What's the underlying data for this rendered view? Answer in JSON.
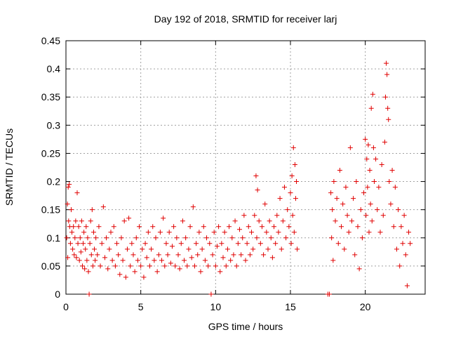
{
  "chart_data": {
    "type": "scatter",
    "title": "Day 192 of 2018, SRMTID for receiver larj",
    "xlabel": "GPS time / hours",
    "ylabel": "SRMTID / TECUs",
    "xlim": [
      0,
      24
    ],
    "ylim": [
      0,
      0.45
    ],
    "grid": true,
    "marker": "+",
    "color": "#e00000",
    "x_ticks": [
      {
        "value": 0,
        "label": "0"
      },
      {
        "value": 5,
        "label": "5"
      },
      {
        "value": 10,
        "label": "10"
      },
      {
        "value": 15,
        "label": "15"
      },
      {
        "value": 20,
        "label": "20"
      }
    ],
    "y_ticks": [
      {
        "value": 0,
        "label": "0"
      },
      {
        "value": 0.05,
        "label": "0.05"
      },
      {
        "value": 0.1,
        "label": "0.1"
      },
      {
        "value": 0.15,
        "label": "0.15"
      },
      {
        "value": 0.2,
        "label": "0.2"
      },
      {
        "value": 0.25,
        "label": "0.25"
      },
      {
        "value": 0.3,
        "label": "0.3"
      },
      {
        "value": 0.35,
        "label": "0.35"
      },
      {
        "value": 0.4,
        "label": "0.4"
      },
      {
        "value": 0.45,
        "label": "0.45"
      }
    ],
    "series": [
      {
        "name": "SRMTID",
        "points": [
          [
            0.05,
            0.1
          ],
          [
            0.1,
            0.16
          ],
          [
            0.12,
            0.065
          ],
          [
            0.15,
            0.19
          ],
          [
            0.18,
            0.13
          ],
          [
            0.22,
            0.195
          ],
          [
            0.25,
            0.12
          ],
          [
            0.3,
            0.09
          ],
          [
            0.35,
            0.15
          ],
          [
            0.4,
            0.11
          ],
          [
            0.45,
            0.08
          ],
          [
            0.5,
            0.12
          ],
          [
            0.55,
            0.07
          ],
          [
            0.6,
            0.1
          ],
          [
            0.65,
            0.13
          ],
          [
            0.7,
            0.065
          ],
          [
            0.75,
            0.18
          ],
          [
            0.8,
            0.09
          ],
          [
            0.85,
            0.12
          ],
          [
            0.9,
            0.06
          ],
          [
            0.95,
            0.1
          ],
          [
            1.0,
            0.075
          ],
          [
            1.05,
            0.13
          ],
          [
            1.1,
            0.05
          ],
          [
            1.15,
            0.09
          ],
          [
            1.2,
            0.11
          ],
          [
            1.25,
            0.045
          ],
          [
            1.3,
            0.08
          ],
          [
            1.35,
            0.12
          ],
          [
            1.4,
            0.06
          ],
          [
            1.45,
            0.1
          ],
          [
            1.5,
            0.04
          ],
          [
            1.55,
            0.0
          ],
          [
            1.6,
            0.09
          ],
          [
            1.65,
            0.13
          ],
          [
            1.7,
            0.07
          ],
          [
            1.75,
            0.15
          ],
          [
            1.8,
            0.05
          ],
          [
            1.85,
            0.11
          ],
          [
            1.9,
            0.08
          ],
          [
            1.95,
            0.06
          ],
          [
            2.0,
            0.1
          ],
          [
            2.1,
            0.07
          ],
          [
            2.2,
            0.12
          ],
          [
            2.3,
            0.05
          ],
          [
            2.4,
            0.09
          ],
          [
            2.5,
            0.155
          ],
          [
            2.6,
            0.065
          ],
          [
            2.7,
            0.1
          ],
          [
            2.8,
            0.045
          ],
          [
            2.9,
            0.08
          ],
          [
            3.0,
            0.11
          ],
          [
            3.1,
            0.06
          ],
          [
            3.2,
            0.12
          ],
          [
            3.3,
            0.05
          ],
          [
            3.4,
            0.09
          ],
          [
            3.5,
            0.07
          ],
          [
            3.6,
            0.035
          ],
          [
            3.7,
            0.1
          ],
          [
            3.8,
            0.06
          ],
          [
            3.9,
            0.13
          ],
          [
            4.0,
            0.03
          ],
          [
            4.1,
            0.08
          ],
          [
            4.2,
            0.135
          ],
          [
            4.3,
            0.05
          ],
          [
            4.4,
            0.09
          ],
          [
            4.5,
            0.07
          ],
          [
            4.6,
            0.04
          ],
          [
            4.7,
            0.1
          ],
          [
            4.8,
            0.06
          ],
          [
            4.9,
            0.12
          ],
          [
            5.0,
            0.05
          ],
          [
            5.1,
            0.08
          ],
          [
            5.2,
            0.03
          ],
          [
            5.3,
            0.09
          ],
          [
            5.4,
            0.065
          ],
          [
            5.5,
            0.11
          ],
          [
            5.6,
            0.05
          ],
          [
            5.7,
            0.08
          ],
          [
            5.8,
            0.12
          ],
          [
            5.9,
            0.06
          ],
          [
            6.0,
            0.1
          ],
          [
            6.1,
            0.04
          ],
          [
            6.2,
            0.07
          ],
          [
            6.3,
            0.11
          ],
          [
            6.4,
            0.06
          ],
          [
            6.5,
            0.135
          ],
          [
            6.6,
            0.05
          ],
          [
            6.7,
            0.09
          ],
          [
            6.8,
            0.07
          ],
          [
            6.9,
            0.11
          ],
          [
            7.0,
            0.055
          ],
          [
            7.1,
            0.085
          ],
          [
            7.2,
            0.12
          ],
          [
            7.3,
            0.05
          ],
          [
            7.4,
            0.1
          ],
          [
            7.5,
            0.07
          ],
          [
            7.6,
            0.045
          ],
          [
            7.7,
            0.09
          ],
          [
            7.8,
            0.13
          ],
          [
            7.9,
            0.06
          ],
          [
            8.0,
            0.1
          ],
          [
            8.1,
            0.05
          ],
          [
            8.2,
            0.08
          ],
          [
            8.3,
            0.12
          ],
          [
            8.4,
            0.065
          ],
          [
            8.5,
            0.155
          ],
          [
            8.6,
            0.05
          ],
          [
            8.7,
            0.09
          ],
          [
            8.8,
            0.07
          ],
          [
            8.9,
            0.11
          ],
          [
            9.0,
            0.04
          ],
          [
            9.1,
            0.08
          ],
          [
            9.2,
            0.12
          ],
          [
            9.3,
            0.06
          ],
          [
            9.4,
            0.1
          ],
          [
            9.5,
            0.05
          ],
          [
            9.6,
            0.09
          ],
          [
            9.7,
            0.0
          ],
          [
            9.8,
            0.07
          ],
          [
            9.9,
            0.11
          ],
          [
            10.0,
            0.05
          ],
          [
            10.1,
            0.085
          ],
          [
            10.2,
            0.12
          ],
          [
            10.3,
            0.04
          ],
          [
            10.4,
            0.09
          ],
          [
            10.5,
            0.065
          ],
          [
            10.6,
            0.11
          ],
          [
            10.7,
            0.05
          ],
          [
            10.8,
            0.08
          ],
          [
            10.9,
            0.12
          ],
          [
            11.0,
            0.06
          ],
          [
            11.1,
            0.1
          ],
          [
            11.2,
            0.07
          ],
          [
            11.3,
            0.13
          ],
          [
            11.4,
            0.05
          ],
          [
            11.5,
            0.09
          ],
          [
            11.6,
            0.115
          ],
          [
            11.7,
            0.07
          ],
          [
            11.8,
            0.1
          ],
          [
            11.9,
            0.14
          ],
          [
            12.0,
            0.06
          ],
          [
            12.1,
            0.09
          ],
          [
            12.2,
            0.12
          ],
          [
            12.3,
            0.07
          ],
          [
            12.4,
            0.11
          ],
          [
            12.5,
            0.08
          ],
          [
            12.6,
            0.14
          ],
          [
            12.7,
            0.21
          ],
          [
            12.75,
            0.1
          ],
          [
            12.8,
            0.185
          ],
          [
            12.9,
            0.13
          ],
          [
            13.0,
            0.09
          ],
          [
            13.1,
            0.12
          ],
          [
            13.2,
            0.07
          ],
          [
            13.3,
            0.16
          ],
          [
            13.4,
            0.11
          ],
          [
            13.5,
            0.08
          ],
          [
            13.6,
            0.13
          ],
          [
            13.7,
            0.1
          ],
          [
            13.8,
            0.065
          ],
          [
            13.9,
            0.12
          ],
          [
            14.0,
            0.09
          ],
          [
            14.1,
            0.14
          ],
          [
            14.2,
            0.11
          ],
          [
            14.3,
            0.17
          ],
          [
            14.4,
            0.08
          ],
          [
            14.5,
            0.13
          ],
          [
            14.6,
            0.19
          ],
          [
            14.7,
            0.1
          ],
          [
            14.8,
            0.15
          ],
          [
            14.9,
            0.12
          ],
          [
            15.0,
            0.18
          ],
          [
            15.05,
            0.09
          ],
          [
            15.1,
            0.21
          ],
          [
            15.15,
            0.14
          ],
          [
            15.2,
            0.26
          ],
          [
            15.25,
            0.11
          ],
          [
            15.3,
            0.23
          ],
          [
            15.35,
            0.17
          ],
          [
            15.4,
            0.2
          ],
          [
            15.45,
            0.08
          ],
          [
            17.5,
            0.0
          ],
          [
            17.6,
            0.0
          ],
          [
            17.7,
            0.18
          ],
          [
            17.75,
            0.1
          ],
          [
            17.8,
            0.15
          ],
          [
            17.85,
            0.06
          ],
          [
            17.9,
            0.2
          ],
          [
            18.0,
            0.13
          ],
          [
            18.1,
            0.17
          ],
          [
            18.2,
            0.09
          ],
          [
            18.3,
            0.22
          ],
          [
            18.4,
            0.12
          ],
          [
            18.5,
            0.16
          ],
          [
            18.6,
            0.08
          ],
          [
            18.7,
            0.19
          ],
          [
            18.8,
            0.14
          ],
          [
            18.9,
            0.11
          ],
          [
            19.0,
            0.26
          ],
          [
            19.1,
            0.13
          ],
          [
            19.2,
            0.17
          ],
          [
            19.3,
            0.07
          ],
          [
            19.4,
            0.2
          ],
          [
            19.5,
            0.12
          ],
          [
            19.6,
            0.045
          ],
          [
            19.7,
            0.15
          ],
          [
            19.8,
            0.1
          ],
          [
            19.9,
            0.18
          ],
          [
            20.0,
            0.275
          ],
          [
            20.05,
            0.14
          ],
          [
            20.1,
            0.24
          ],
          [
            20.15,
            0.19
          ],
          [
            20.2,
            0.265
          ],
          [
            20.25,
            0.11
          ],
          [
            20.3,
            0.22
          ],
          [
            20.35,
            0.16
          ],
          [
            20.4,
            0.33
          ],
          [
            20.45,
            0.13
          ],
          [
            20.5,
            0.355
          ],
          [
            20.55,
            0.26
          ],
          [
            20.6,
            0.2
          ],
          [
            20.7,
            0.24
          ],
          [
            20.8,
            0.15
          ],
          [
            20.9,
            0.19
          ],
          [
            21.0,
            0.11
          ],
          [
            21.1,
            0.23
          ],
          [
            21.2,
            0.14
          ],
          [
            21.3,
            0.27
          ],
          [
            21.35,
            0.35
          ],
          [
            21.4,
            0.41
          ],
          [
            21.45,
            0.39
          ],
          [
            21.5,
            0.33
          ],
          [
            21.55,
            0.31
          ],
          [
            21.6,
            0.2
          ],
          [
            21.7,
            0.16
          ],
          [
            21.8,
            0.22
          ],
          [
            21.9,
            0.12
          ],
          [
            22.0,
            0.19
          ],
          [
            22.1,
            0.08
          ],
          [
            22.2,
            0.15
          ],
          [
            22.3,
            0.05
          ],
          [
            22.4,
            0.12
          ],
          [
            22.5,
            0.09
          ],
          [
            22.6,
            0.14
          ],
          [
            22.7,
            0.07
          ],
          [
            22.8,
            0.015
          ],
          [
            22.9,
            0.11
          ],
          [
            23.0,
            0.09
          ]
        ]
      }
    ]
  }
}
